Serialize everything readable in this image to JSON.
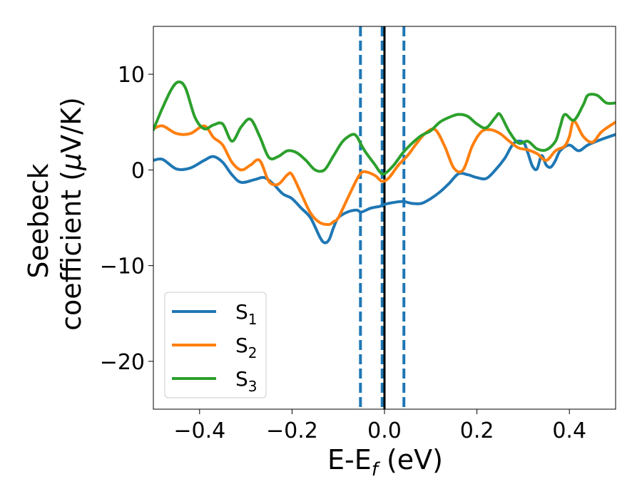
{
  "chart_data": {
    "type": "line",
    "xlabel": {
      "main": "E-E",
      "sub": "f",
      "tail": " (eV)"
    },
    "ylabel": {
      "line1": "Seebeck",
      "line2_pre": "coefficient  (",
      "line2_mu": "μ",
      "line2_post": "V/K)"
    },
    "xlim": [
      -0.5,
      0.5
    ],
    "ylim": [
      -25,
      15
    ],
    "xticks": [
      -0.4,
      -0.2,
      0.0,
      0.2,
      0.4
    ],
    "xtick_labels": [
      "−0.4",
      "−0.2",
      "0.0",
      "0.2",
      "0.4"
    ],
    "yticks": [
      -20,
      -10,
      0,
      10
    ],
    "ytick_labels": [
      "−20",
      "−10",
      "0",
      "10"
    ],
    "grid": false,
    "legend_position": "lower-left",
    "vlines": [
      {
        "x": -0.052,
        "style": "dashed",
        "color": "#1f77b4"
      },
      {
        "x": -0.005,
        "style": "dashed",
        "color": "#1f77b4"
      },
      {
        "x": 0.042,
        "style": "dashed",
        "color": "#1f77b4"
      },
      {
        "x": 0.0,
        "style": "solid",
        "color": "#000000"
      }
    ],
    "series": [
      {
        "name": "S",
        "sub": "1",
        "color": "#1f77b4",
        "x": [
          -0.5,
          -0.48,
          -0.45,
          -0.42,
          -0.39,
          -0.37,
          -0.35,
          -0.33,
          -0.31,
          -0.28,
          -0.26,
          -0.24,
          -0.22,
          -0.2,
          -0.18,
          -0.16,
          -0.14,
          -0.13,
          -0.12,
          -0.11,
          -0.1,
          -0.08,
          -0.06,
          -0.05,
          -0.03,
          -0.01,
          0.0,
          0.02,
          0.04,
          0.06,
          0.08,
          0.1,
          0.12,
          0.14,
          0.16,
          0.18,
          0.2,
          0.22,
          0.24,
          0.26,
          0.28,
          0.3,
          0.31,
          0.32,
          0.33,
          0.34,
          0.35,
          0.36,
          0.37,
          0.38,
          0.4,
          0.42,
          0.44,
          0.47,
          0.5
        ],
        "y": [
          1.0,
          1.1,
          0.1,
          0.2,
          1.0,
          1.4,
          0.8,
          -0.5,
          -1.3,
          -1.0,
          -0.8,
          -1.5,
          -2.5,
          -3.0,
          -4.0,
          -5.0,
          -7.0,
          -7.6,
          -7.3,
          -6.0,
          -5.0,
          -4.4,
          -4.2,
          -4.4,
          -4.0,
          -3.8,
          -3.6,
          -3.4,
          -3.3,
          -3.5,
          -3.5,
          -3.0,
          -2.3,
          -1.4,
          -0.4,
          -0.5,
          -0.8,
          -0.9,
          0.0,
          1.2,
          2.8,
          2.9,
          1.8,
          0.4,
          0.1,
          1.5,
          0.5,
          0.3,
          1.0,
          2.0,
          2.6,
          2.0,
          2.6,
          3.2,
          3.7
        ]
      },
      {
        "name": "S",
        "sub": "2",
        "color": "#ff7f0e",
        "x": [
          -0.5,
          -0.48,
          -0.45,
          -0.42,
          -0.39,
          -0.37,
          -0.35,
          -0.33,
          -0.31,
          -0.29,
          -0.27,
          -0.25,
          -0.23,
          -0.21,
          -0.2,
          -0.18,
          -0.16,
          -0.14,
          -0.12,
          -0.11,
          -0.1,
          -0.08,
          -0.06,
          -0.05,
          -0.04,
          -0.02,
          -0.005,
          0.01,
          0.03,
          0.05,
          0.07,
          0.09,
          0.11,
          0.13,
          0.15,
          0.17,
          0.19,
          0.21,
          0.23,
          0.25,
          0.27,
          0.29,
          0.31,
          0.33,
          0.35,
          0.37,
          0.39,
          0.4,
          0.41,
          0.43,
          0.45,
          0.47,
          0.5
        ],
        "y": [
          4.3,
          4.6,
          3.8,
          3.8,
          4.6,
          3.4,
          2.6,
          0.8,
          0.0,
          0.5,
          1.0,
          -1.2,
          -1.5,
          -0.5,
          -0.5,
          -2.5,
          -4.5,
          -5.5,
          -5.7,
          -5.4,
          -5.0,
          -3.0,
          -1.0,
          -0.3,
          -0.2,
          -0.6,
          -1.2,
          -0.8,
          0.5,
          1.5,
          2.8,
          3.9,
          4.2,
          2.5,
          0.2,
          0.0,
          2.5,
          4.0,
          4.2,
          3.8,
          3.0,
          2.3,
          2.1,
          1.7,
          1.0,
          2.0,
          2.5,
          3.5,
          5.1,
          3.5,
          2.9,
          4.0,
          5.0
        ]
      },
      {
        "name": "S",
        "sub": "3",
        "color": "#2ca02c",
        "x": [
          -0.5,
          -0.48,
          -0.46,
          -0.445,
          -0.43,
          -0.41,
          -0.39,
          -0.37,
          -0.35,
          -0.33,
          -0.31,
          -0.29,
          -0.27,
          -0.25,
          -0.23,
          -0.21,
          -0.19,
          -0.17,
          -0.15,
          -0.13,
          -0.11,
          -0.09,
          -0.07,
          -0.06,
          -0.05,
          -0.04,
          -0.02,
          -0.01,
          0.0,
          0.02,
          0.04,
          0.06,
          0.08,
          0.1,
          0.12,
          0.14,
          0.16,
          0.18,
          0.2,
          0.22,
          0.24,
          0.25,
          0.27,
          0.29,
          0.31,
          0.33,
          0.35,
          0.37,
          0.38,
          0.39,
          0.41,
          0.43,
          0.44,
          0.46,
          0.48,
          0.5
        ],
        "y": [
          4.2,
          6.5,
          8.5,
          9.2,
          8.5,
          5.5,
          4.3,
          4.7,
          4.8,
          3.0,
          4.5,
          5.3,
          3.5,
          1.3,
          1.4,
          2.0,
          1.8,
          1.0,
          0.0,
          0.0,
          1.5,
          3.0,
          3.7,
          3.5,
          2.6,
          1.8,
          0.5,
          -0.2,
          -0.4,
          0.5,
          1.8,
          2.8,
          3.6,
          4.1,
          5.0,
          5.5,
          5.8,
          5.6,
          4.8,
          4.4,
          5.5,
          5.8,
          4.0,
          2.8,
          3.0,
          2.2,
          2.1,
          3.0,
          4.5,
          5.8,
          5.2,
          6.8,
          7.8,
          7.8,
          7.0,
          7.0
        ]
      }
    ]
  }
}
